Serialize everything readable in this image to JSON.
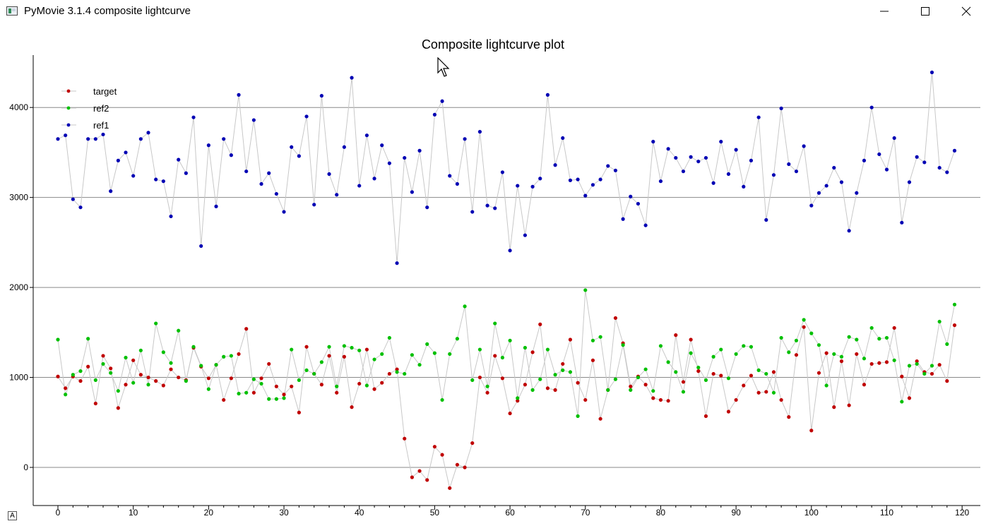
{
  "window": {
    "title": "PyMovie 3.1.4 composite lightcurve",
    "minimize_icon": "minimize-icon",
    "maximize_icon": "maximize-icon",
    "close_icon": "close-icon"
  },
  "corner_button": {
    "label": "A"
  },
  "chart_data": {
    "type": "scatter",
    "title": "Composite lightcurve plot",
    "xlabel": "",
    "ylabel": "",
    "xlim": [
      -3,
      122
    ],
    "ylim": [
      -430,
      4600
    ],
    "xticks": [
      0,
      10,
      20,
      30,
      40,
      50,
      60,
      70,
      80,
      90,
      100,
      110,
      120
    ],
    "yticks": [
      0,
      1000,
      2000,
      3000,
      4000
    ],
    "grid": "horizontal",
    "legend": "top-left",
    "x": [
      0,
      1,
      2,
      3,
      4,
      5,
      6,
      7,
      8,
      9,
      10,
      11,
      12,
      13,
      14,
      15,
      16,
      17,
      18,
      19,
      20,
      21,
      22,
      23,
      24,
      25,
      26,
      27,
      28,
      29,
      30,
      31,
      32,
      33,
      34,
      35,
      36,
      37,
      38,
      39,
      40,
      41,
      42,
      43,
      44,
      45,
      46,
      47,
      48,
      49,
      50,
      51,
      52,
      53,
      54,
      55,
      56,
      57,
      58,
      59,
      60,
      61,
      62,
      63,
      64,
      65,
      66,
      67,
      68,
      69,
      70,
      71,
      72,
      73,
      74,
      75,
      76,
      77,
      78,
      79,
      80,
      81,
      82,
      83,
      84,
      85,
      86,
      87,
      88,
      89,
      90,
      91,
      92,
      93,
      94,
      95,
      96,
      97,
      98,
      99,
      100,
      101,
      102,
      103,
      104,
      105,
      106,
      107,
      108,
      109,
      110,
      111,
      112,
      113,
      114,
      115,
      116,
      117,
      118,
      119
    ],
    "series": [
      {
        "name": "target",
        "color": "#c00000",
        "values": [
          1010,
          880,
          1010,
          960,
          1120,
          710,
          1240,
          1100,
          660,
          920,
          1190,
          1030,
          1000,
          960,
          910,
          1090,
          1000,
          970,
          1330,
          1120,
          990,
          1140,
          750,
          990,
          1260,
          1540,
          830,
          990,
          1150,
          900,
          810,
          900,
          610,
          1340,
          1040,
          920,
          1240,
          830,
          1230,
          670,
          930,
          1310,
          870,
          940,
          1040,
          1090,
          320,
          -110,
          -40,
          -140,
          230,
          140,
          -230,
          30,
          0,
          270,
          1000,
          830,
          1240,
          990,
          600,
          740,
          920,
          1280,
          1590,
          880,
          860,
          1150,
          1420,
          940,
          750,
          1190,
          540,
          860,
          1660,
          1380,
          900,
          1010,
          920,
          770,
          750,
          740,
          1470,
          950,
          1420,
          1070,
          570,
          1040,
          1020,
          620,
          750,
          910,
          1020,
          830,
          840,
          1060,
          750,
          560,
          1250,
          1560,
          410,
          1050,
          1270,
          670,
          1180,
          690,
          1260,
          920,
          1150,
          1160,
          1170,
          1550,
          1010,
          770,
          1180,
          1060,
          1040,
          1140,
          960,
          1580
        ]
      },
      {
        "name": "ref2",
        "color": "#00c000",
        "values": [
          1420,
          810,
          1030,
          1070,
          1430,
          970,
          1150,
          1050,
          850,
          1220,
          940,
          1300,
          920,
          1600,
          1280,
          1160,
          1520,
          960,
          1340,
          1130,
          870,
          1140,
          1230,
          1240,
          820,
          830,
          980,
          930,
          760,
          760,
          770,
          1310,
          970,
          1080,
          1040,
          1170,
          1340,
          900,
          1350,
          1330,
          1300,
          910,
          1200,
          1260,
          1440,
          1060,
          1040,
          1250,
          1140,
          1370,
          1270,
          750,
          1260,
          1430,
          1790,
          970,
          1310,
          900,
          1600,
          1220,
          1410,
          770,
          1330,
          860,
          980,
          1310,
          1030,
          1080,
          1060,
          570,
          1970,
          1410,
          1450,
          860,
          980,
          1360,
          860,
          1000,
          1090,
          850,
          1350,
          1170,
          1060,
          840,
          1270,
          1110,
          970,
          1230,
          1310,
          990,
          1260,
          1350,
          1340,
          1080,
          1040,
          830,
          1440,
          1280,
          1410,
          1640,
          1490,
          1360,
          910,
          1260,
          1230,
          1450,
          1420,
          1210,
          1550,
          1430,
          1440,
          1190,
          730,
          1130,
          1150,
          1040,
          1130,
          1620,
          1370,
          1810
        ]
      },
      {
        "name": "ref1",
        "color": "#0000b4",
        "values": [
          3650,
          3690,
          2980,
          2890,
          3650,
          3650,
          3700,
          3070,
          3410,
          3500,
          3240,
          3650,
          3720,
          3200,
          3180,
          2790,
          3420,
          3270,
          3890,
          2460,
          3580,
          2900,
          3650,
          3470,
          4140,
          3290,
          3860,
          3150,
          3270,
          3040,
          2840,
          3560,
          3460,
          3900,
          2920,
          4130,
          3260,
          3030,
          3560,
          4330,
          3130,
          3690,
          3210,
          3580,
          3380,
          2270,
          3440,
          3060,
          3520,
          2890,
          3920,
          4070,
          3240,
          3150,
          3650,
          2840,
          3730,
          2910,
          2880,
          3280,
          2410,
          3130,
          2580,
          3120,
          3210,
          4140,
          3360,
          3660,
          3190,
          3200,
          3020,
          3140,
          3200,
          3350,
          3300,
          2760,
          3010,
          2930,
          2690,
          3620,
          3180,
          3540,
          3440,
          3290,
          3450,
          3400,
          3440,
          3160,
          3620,
          3260,
          3530,
          3120,
          3410,
          3890,
          2750,
          3250,
          3990,
          3370,
          3290,
          3570,
          2910,
          3050,
          3130,
          3330,
          3170,
          2630,
          3050,
          3410,
          4000,
          3480,
          3310,
          3660,
          2720,
          3170,
          3450,
          3390,
          4390,
          3330,
          3280,
          3520
        ]
      }
    ]
  }
}
